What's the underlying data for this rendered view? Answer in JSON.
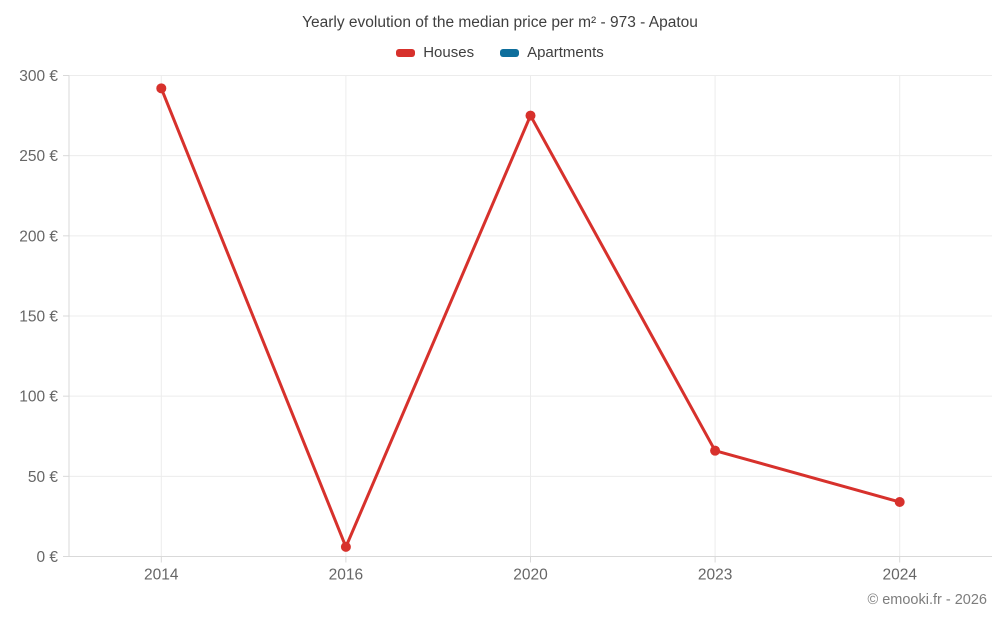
{
  "chart_data": {
    "type": "line",
    "title": "Yearly evolution of the median price per m² - 973 - Apatou",
    "categories": [
      "2014",
      "2016",
      "2020",
      "2023",
      "2024"
    ],
    "series": [
      {
        "name": "Houses",
        "color": "#d7312c",
        "values": [
          292,
          6,
          275,
          66,
          34
        ]
      },
      {
        "name": "Apartments",
        "color": "#0e6e9c",
        "values": []
      }
    ],
    "xlabel": "",
    "ylabel": "",
    "ylim": [
      0,
      300
    ],
    "ytick_step": 50,
    "ytick_suffix": " €",
    "grid": true,
    "legend_position": "top",
    "colors": {
      "grid": "#ececec",
      "axis": "#d9d9d9",
      "tick_label": "#666666",
      "title": "#3f3f3f"
    }
  },
  "footer": {
    "credit": "© emooki.fr - 2026"
  }
}
